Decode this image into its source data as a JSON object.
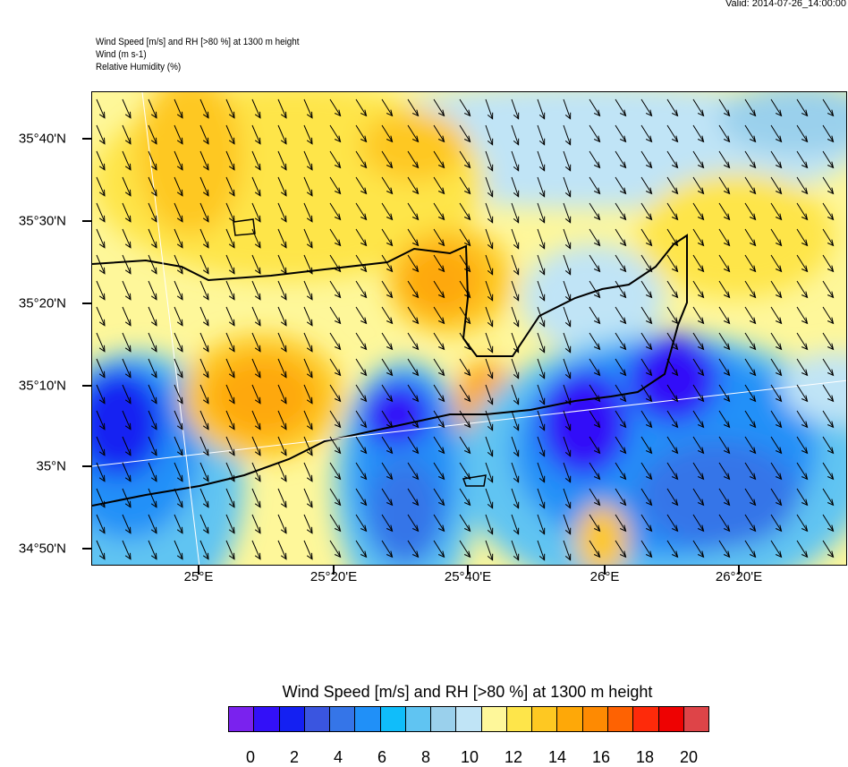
{
  "valid": "Valid: 2014-07-26_14:00:00",
  "header": {
    "line1": "Wind Speed [m/s] and RH [>80 %] at 1300 m height",
    "line2": "Wind   (m s-1)",
    "line3": "Relative Humidity   (%)"
  },
  "map": {
    "lat_labels": [
      "35°40'N",
      "35°30'N",
      "35°20'N",
      "35°10'N",
      "35°N",
      "34°50'N"
    ],
    "lon_labels": [
      "25°E",
      "25°20'E",
      "25°40'E",
      "26°E",
      "26°20'E"
    ]
  },
  "colorbar": {
    "title": "Wind Speed [m/s] and RH [>80 %] at 1300 m height",
    "colors": [
      "#7a22ee",
      "#3310f8",
      "#1420f2",
      "#3a55e0",
      "#3575e8",
      "#2090f8",
      "#12a5f8",
      "#10bdfa",
      "#60c4f2",
      "#9ad0ec",
      "#c0e4f6",
      "#fef79a",
      "#fee54a",
      "#fec822",
      "#fea808",
      "#fe8a02",
      "#fe6202",
      "#fe2a0a",
      "#ee0202",
      "#cc0202",
      "#de4448",
      "#feb0b0"
    ],
    "labels": [
      "0",
      "2",
      "4",
      "6",
      "8",
      "10",
      "12",
      "14",
      "16",
      "18",
      "20"
    ]
  }
}
